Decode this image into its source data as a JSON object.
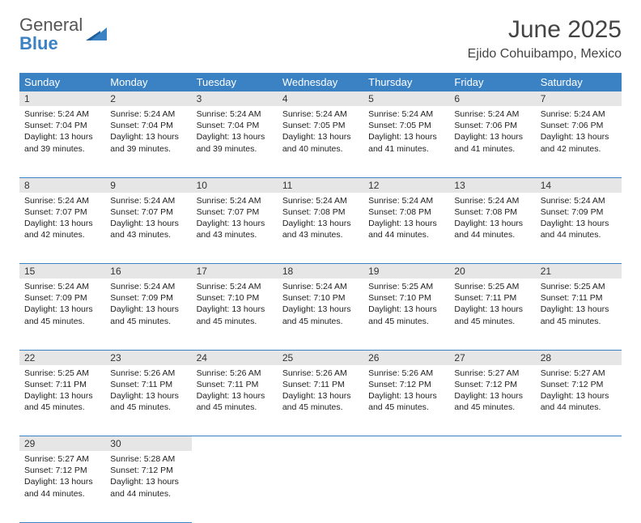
{
  "brand": {
    "part1": "General",
    "part2": "Blue"
  },
  "title": "June 2025",
  "location": "Ejido Cohuibampo, Mexico",
  "colors": {
    "header_bg": "#3b82c4",
    "header_fg": "#ffffff",
    "daynum_bg": "#e6e6e6",
    "rule": "#3b82c4",
    "page_bg": "#ffffff",
    "text": "#222222"
  },
  "weekdays": [
    "Sunday",
    "Monday",
    "Tuesday",
    "Wednesday",
    "Thursday",
    "Friday",
    "Saturday"
  ],
  "weeks": [
    [
      {
        "n": "1",
        "sr": "5:24 AM",
        "ss": "7:04 PM",
        "dl": "13 hours and 39 minutes."
      },
      {
        "n": "2",
        "sr": "5:24 AM",
        "ss": "7:04 PM",
        "dl": "13 hours and 39 minutes."
      },
      {
        "n": "3",
        "sr": "5:24 AM",
        "ss": "7:04 PM",
        "dl": "13 hours and 39 minutes."
      },
      {
        "n": "4",
        "sr": "5:24 AM",
        "ss": "7:05 PM",
        "dl": "13 hours and 40 minutes."
      },
      {
        "n": "5",
        "sr": "5:24 AM",
        "ss": "7:05 PM",
        "dl": "13 hours and 41 minutes."
      },
      {
        "n": "6",
        "sr": "5:24 AM",
        "ss": "7:06 PM",
        "dl": "13 hours and 41 minutes."
      },
      {
        "n": "7",
        "sr": "5:24 AM",
        "ss": "7:06 PM",
        "dl": "13 hours and 42 minutes."
      }
    ],
    [
      {
        "n": "8",
        "sr": "5:24 AM",
        "ss": "7:07 PM",
        "dl": "13 hours and 42 minutes."
      },
      {
        "n": "9",
        "sr": "5:24 AM",
        "ss": "7:07 PM",
        "dl": "13 hours and 43 minutes."
      },
      {
        "n": "10",
        "sr": "5:24 AM",
        "ss": "7:07 PM",
        "dl": "13 hours and 43 minutes."
      },
      {
        "n": "11",
        "sr": "5:24 AM",
        "ss": "7:08 PM",
        "dl": "13 hours and 43 minutes."
      },
      {
        "n": "12",
        "sr": "5:24 AM",
        "ss": "7:08 PM",
        "dl": "13 hours and 44 minutes."
      },
      {
        "n": "13",
        "sr": "5:24 AM",
        "ss": "7:08 PM",
        "dl": "13 hours and 44 minutes."
      },
      {
        "n": "14",
        "sr": "5:24 AM",
        "ss": "7:09 PM",
        "dl": "13 hours and 44 minutes."
      }
    ],
    [
      {
        "n": "15",
        "sr": "5:24 AM",
        "ss": "7:09 PM",
        "dl": "13 hours and 45 minutes."
      },
      {
        "n": "16",
        "sr": "5:24 AM",
        "ss": "7:09 PM",
        "dl": "13 hours and 45 minutes."
      },
      {
        "n": "17",
        "sr": "5:24 AM",
        "ss": "7:10 PM",
        "dl": "13 hours and 45 minutes."
      },
      {
        "n": "18",
        "sr": "5:24 AM",
        "ss": "7:10 PM",
        "dl": "13 hours and 45 minutes."
      },
      {
        "n": "19",
        "sr": "5:25 AM",
        "ss": "7:10 PM",
        "dl": "13 hours and 45 minutes."
      },
      {
        "n": "20",
        "sr": "5:25 AM",
        "ss": "7:11 PM",
        "dl": "13 hours and 45 minutes."
      },
      {
        "n": "21",
        "sr": "5:25 AM",
        "ss": "7:11 PM",
        "dl": "13 hours and 45 minutes."
      }
    ],
    [
      {
        "n": "22",
        "sr": "5:25 AM",
        "ss": "7:11 PM",
        "dl": "13 hours and 45 minutes."
      },
      {
        "n": "23",
        "sr": "5:26 AM",
        "ss": "7:11 PM",
        "dl": "13 hours and 45 minutes."
      },
      {
        "n": "24",
        "sr": "5:26 AM",
        "ss": "7:11 PM",
        "dl": "13 hours and 45 minutes."
      },
      {
        "n": "25",
        "sr": "5:26 AM",
        "ss": "7:11 PM",
        "dl": "13 hours and 45 minutes."
      },
      {
        "n": "26",
        "sr": "5:26 AM",
        "ss": "7:12 PM",
        "dl": "13 hours and 45 minutes."
      },
      {
        "n": "27",
        "sr": "5:27 AM",
        "ss": "7:12 PM",
        "dl": "13 hours and 45 minutes."
      },
      {
        "n": "28",
        "sr": "5:27 AM",
        "ss": "7:12 PM",
        "dl": "13 hours and 44 minutes."
      }
    ],
    [
      {
        "n": "29",
        "sr": "5:27 AM",
        "ss": "7:12 PM",
        "dl": "13 hours and 44 minutes."
      },
      {
        "n": "30",
        "sr": "5:28 AM",
        "ss": "7:12 PM",
        "dl": "13 hours and 44 minutes."
      },
      null,
      null,
      null,
      null,
      null
    ]
  ],
  "labels": {
    "sunrise": "Sunrise:",
    "sunset": "Sunset:",
    "daylight": "Daylight:"
  }
}
